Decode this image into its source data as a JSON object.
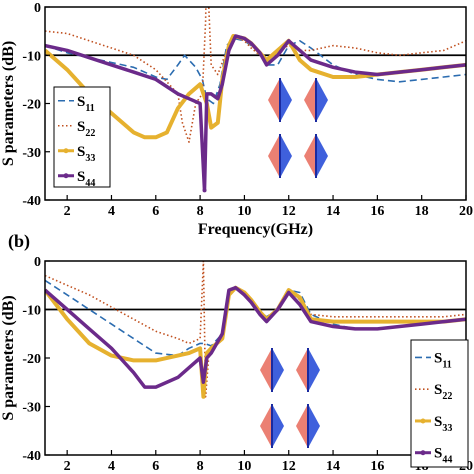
{
  "chart_data": [
    {
      "type": "line",
      "panel_label": "",
      "xlabel": "Frequency(GHz)",
      "ylabel": "S parameters (dB)",
      "xlim": [
        1,
        20
      ],
      "ylim": [
        -40,
        0
      ],
      "xticks": [
        "2",
        "4",
        "6",
        "8",
        "10",
        "12",
        "14",
        "16",
        "18",
        "20"
      ],
      "yticks": [
        "0",
        "-10",
        "-20",
        "-30",
        "-40"
      ],
      "reference_line_db": -10,
      "legend_position": "left",
      "series": [
        {
          "name": "S11",
          "label": "S",
          "sub": "11",
          "color": "#2b6cb0",
          "style": "dashed",
          "x": [
            1,
            2,
            3,
            4,
            5,
            6,
            6.5,
            7,
            7.3,
            7.8,
            8.1,
            8.3,
            8.6,
            8.9,
            9.2,
            9.5,
            10,
            10.3,
            10.7,
            11,
            11.5,
            12,
            12.5,
            13,
            14,
            15,
            16,
            17,
            18,
            19,
            20
          ],
          "y": [
            -8,
            -9.5,
            -10.5,
            -11.5,
            -12.5,
            -14.5,
            -15,
            -12,
            -10,
            -12.5,
            -15,
            -19,
            -20,
            -16,
            -8,
            -6.5,
            -7,
            -8,
            -9.5,
            -12,
            -12,
            -8,
            -7,
            -8.5,
            -12,
            -14,
            -15,
            -15.5,
            -15,
            -14.5,
            -14
          ]
        },
        {
          "name": "S22",
          "label": "S",
          "sub": "22",
          "color": "#c0501f",
          "style": "dotted",
          "x": [
            1,
            2,
            3,
            4,
            5,
            6,
            7,
            7.2,
            7.5,
            7.8,
            8.1,
            8.25,
            8.3,
            8.5,
            8.8,
            9.2,
            9.5,
            10,
            10.3,
            10.7,
            11,
            11.5,
            12,
            12.5,
            13,
            14,
            15,
            16,
            17,
            18,
            19,
            20
          ],
          "y": [
            -5,
            -5.5,
            -7,
            -8.5,
            -10,
            -13,
            -18,
            -24,
            -28,
            -20,
            -18,
            -3,
            10,
            -12,
            -14,
            -9,
            -6,
            -7,
            -8.5,
            -10,
            -11,
            -9,
            -8,
            -9,
            -9,
            -8,
            -8.5,
            -9.5,
            -10,
            -9.5,
            -9,
            -7
          ]
        },
        {
          "name": "S33",
          "label": "S",
          "sub": "33",
          "color": "#e6b12f",
          "style": "solid",
          "width": 4,
          "x": [
            1,
            2,
            3,
            4,
            5,
            5.5,
            6,
            6.5,
            7,
            7.5,
            8,
            8.3,
            8.5,
            8.8,
            9,
            9.3,
            9.5,
            10,
            10.3,
            10.7,
            11,
            11.5,
            12,
            12.5,
            13,
            14,
            15,
            16,
            17,
            18,
            19,
            20
          ],
          "y": [
            -9,
            -13,
            -18,
            -22,
            -26,
            -27,
            -27,
            -26,
            -21,
            -18,
            -16,
            -20,
            -25,
            -24,
            -15,
            -8,
            -6,
            -6.5,
            -7.5,
            -9.5,
            -11,
            -9,
            -7,
            -11,
            -13,
            -14.5,
            -14.5,
            -14,
            -13.5,
            -13,
            -12.5,
            -12
          ]
        },
        {
          "name": "S44",
          "label": "S",
          "sub": "44",
          "color": "#6b2a8a",
          "style": "solid",
          "width": 3.5,
          "marker": true,
          "x": [
            1,
            2,
            3,
            4,
            5,
            6,
            7,
            7.5,
            8,
            8.2,
            8.3,
            8.5,
            8.8,
            9,
            9.3,
            9.6,
            10,
            10.3,
            10.7,
            11,
            11.5,
            12,
            12.5,
            13,
            14,
            15,
            16,
            17,
            18,
            19,
            20
          ],
          "y": [
            -8,
            -9,
            -10.5,
            -12,
            -13.5,
            -15,
            -18,
            -19,
            -20,
            -38,
            -18,
            -18,
            -19,
            -16,
            -9,
            -6,
            -6.5,
            -7.5,
            -9.5,
            -12,
            -10,
            -7,
            -9,
            -11,
            -12.5,
            -13.5,
            -14,
            -13.5,
            -13,
            -12.5,
            -12
          ]
        }
      ]
    },
    {
      "type": "line",
      "panel_label": "(b)",
      "xlabel": "",
      "ylabel": "S parameters (dB)",
      "xlim": [
        1,
        20
      ],
      "ylim": [
        -40,
        0
      ],
      "xticks": [
        "2",
        "4",
        "6",
        "8",
        "10",
        "12",
        "14",
        "16",
        "18",
        "20"
      ],
      "yticks": [
        "0",
        "-10",
        "-20",
        "-30",
        "-40"
      ],
      "reference_line_db": -10,
      "legend_position": "bottom-right",
      "series": [
        {
          "name": "S11",
          "label": "S",
          "sub": "11",
          "color": "#2b6cb0",
          "style": "dashed",
          "x": [
            1,
            2,
            3,
            4,
            5,
            6,
            7,
            7.5,
            8,
            8.2,
            8.5,
            9,
            9.3,
            9.6,
            10,
            10.3,
            10.7,
            11,
            11.5,
            12,
            12.5,
            13,
            14,
            15,
            16,
            17,
            18,
            19,
            20
          ],
          "y": [
            -4,
            -7,
            -10,
            -13,
            -16,
            -19,
            -19.5,
            -18,
            -17,
            -17,
            -17.5,
            -15,
            -7,
            -5.5,
            -6.5,
            -8,
            -10.5,
            -11.5,
            -10,
            -6,
            -6.5,
            -11,
            -13,
            -14,
            -14,
            -13.5,
            -13,
            -12.5,
            -12
          ]
        },
        {
          "name": "S22",
          "label": "S",
          "sub": "22",
          "color": "#c0501f",
          "style": "dotted",
          "x": [
            1,
            2,
            3,
            4,
            5,
            6,
            7,
            7.5,
            8,
            8.15,
            8.25,
            8.4,
            8.6,
            9,
            9.3,
            9.6,
            10,
            10.3,
            10.7,
            11,
            11.5,
            12,
            12.5,
            13,
            14,
            15,
            16,
            17,
            18,
            19,
            20
          ],
          "y": [
            -3,
            -5,
            -7,
            -9.5,
            -12,
            -14.5,
            -16,
            -17,
            -16,
            0,
            -28,
            -19,
            -18,
            -15,
            -7,
            -5.5,
            -6.5,
            -8,
            -10.5,
            -12,
            -10,
            -6,
            -8,
            -11,
            -11.5,
            -11.5,
            -11.5,
            -11.5,
            -11.5,
            -11.5,
            -11
          ]
        },
        {
          "name": "S33",
          "label": "S",
          "sub": "33",
          "color": "#e6b12f",
          "style": "solid",
          "width": 4,
          "x": [
            1,
            2,
            3,
            4,
            5,
            6,
            7,
            7.5,
            8,
            8.15,
            8.3,
            8.5,
            9,
            9.3,
            9.6,
            10,
            10.3,
            10.7,
            11,
            11.5,
            12,
            12.5,
            13,
            14,
            15,
            16,
            17,
            18,
            19,
            20
          ],
          "y": [
            -6,
            -12,
            -17,
            -19.5,
            -20.5,
            -20.5,
            -19.5,
            -19,
            -18,
            -28,
            -19,
            -18,
            -16,
            -7,
            -5.5,
            -6.5,
            -8,
            -10.5,
            -12,
            -10,
            -6,
            -7.5,
            -12,
            -12.5,
            -12.5,
            -12.5,
            -12.5,
            -12.5,
            -12.5,
            -12
          ]
        },
        {
          "name": "S44",
          "label": "S",
          "sub": "44",
          "color": "#6b2a8a",
          "style": "solid",
          "width": 3.5,
          "marker": true,
          "x": [
            1,
            2,
            3,
            4,
            5,
            5.5,
            6,
            7,
            7.5,
            8,
            8.15,
            8.3,
            8.5,
            9,
            9.3,
            9.6,
            10,
            10.3,
            10.7,
            11,
            11.5,
            12,
            12.5,
            13,
            14,
            15,
            16,
            17,
            18,
            19,
            20
          ],
          "y": [
            -6,
            -10,
            -14,
            -18,
            -23,
            -26,
            -26,
            -24,
            -22,
            -20,
            -25,
            -20,
            -19,
            -15,
            -6,
            -5.5,
            -7,
            -8.5,
            -11,
            -12.5,
            -10,
            -6.5,
            -9,
            -12.5,
            -13.5,
            -14,
            -14,
            -13.5,
            -13,
            -12.5,
            -12
          ]
        }
      ]
    }
  ]
}
